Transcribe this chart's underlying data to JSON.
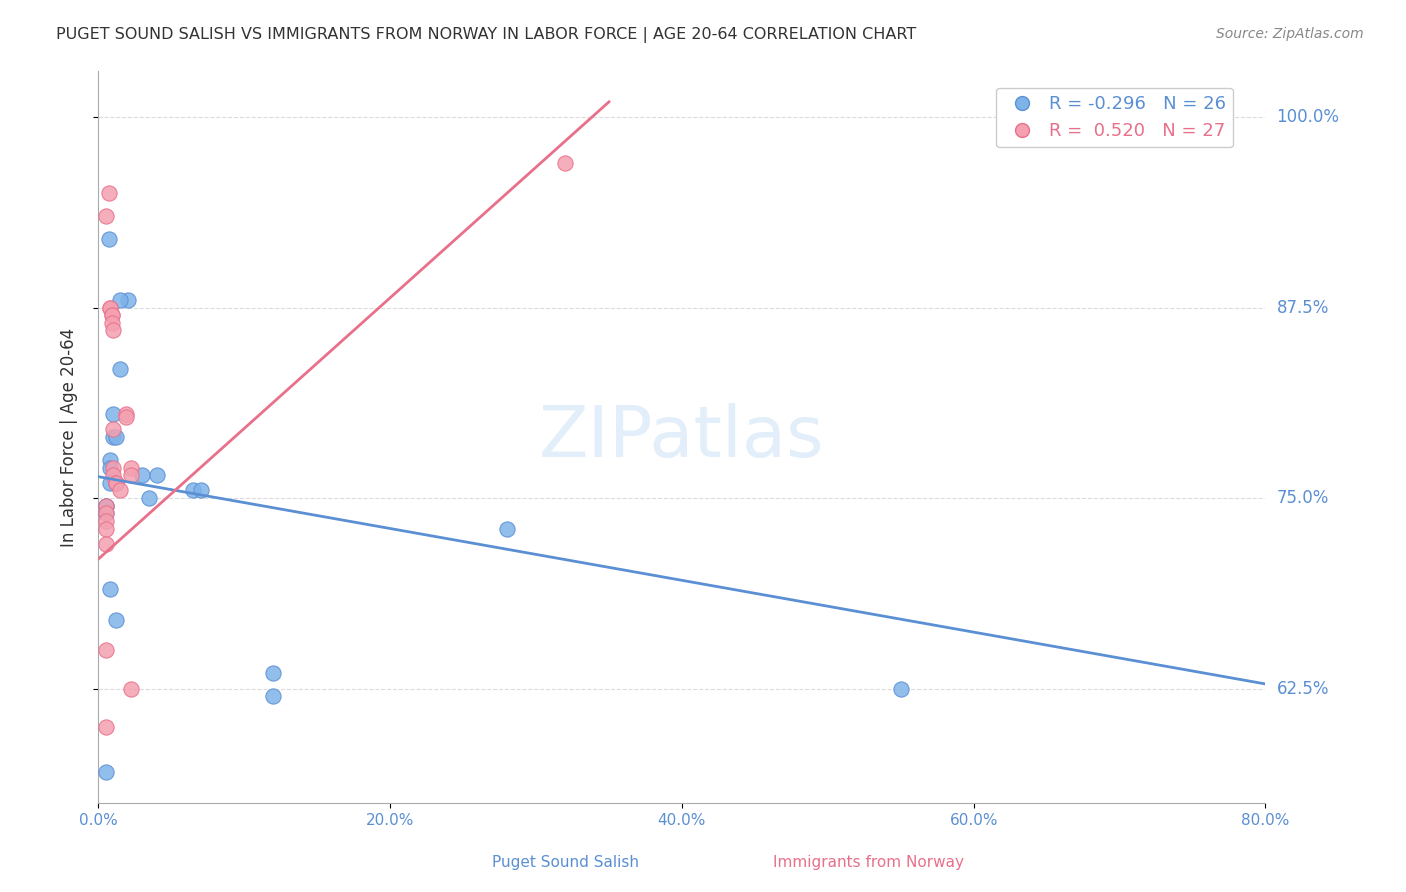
{
  "title": "PUGET SOUND SALISH VS IMMIGRANTS FROM NORWAY IN LABOR FORCE | AGE 20-64 CORRELATION CHART",
  "source": "Source: ZipAtlas.com",
  "xlabel_bottom": "",
  "ylabel": "In Labor Force | Age 20-64",
  "x_min": 0.0,
  "x_max": 0.8,
  "y_min": 0.55,
  "y_max": 1.03,
  "right_yticks": [
    0.625,
    0.75,
    0.875,
    1.0
  ],
  "right_yticklabels": [
    "62.5%",
    "75.0%",
    "87.5%",
    "100.0%"
  ],
  "x_ticks": [
    0.0,
    0.2,
    0.4,
    0.6,
    0.8
  ],
  "x_ticklabels": [
    "0.0%",
    "20.0%",
    "40.0%",
    "60.0%",
    "80.0%"
  ],
  "blue_label": "Puget Sound Salish",
  "pink_label": "Immigrants from Norway",
  "blue_r": "-0.296",
  "blue_n": "26",
  "pink_r": "0.520",
  "pink_n": "27",
  "blue_color": "#7eb3e8",
  "pink_color": "#f4a0b0",
  "blue_line_color": "#5b8fd4",
  "pink_line_color": "#e8708a",
  "watermark": "ZIPatlas",
  "blue_scatter_x": [
    0.007,
    0.02,
    0.015,
    0.015,
    0.01,
    0.01,
    0.012,
    0.008,
    0.008,
    0.008,
    0.012,
    0.005,
    0.005,
    0.005,
    0.065,
    0.07,
    0.03,
    0.04,
    0.035,
    0.008,
    0.012,
    0.12,
    0.12,
    0.55,
    0.28,
    0.005
  ],
  "blue_scatter_y": [
    0.92,
    0.88,
    0.88,
    0.835,
    0.805,
    0.79,
    0.79,
    0.775,
    0.77,
    0.76,
    0.76,
    0.745,
    0.745,
    0.74,
    0.755,
    0.755,
    0.765,
    0.765,
    0.75,
    0.69,
    0.67,
    0.635,
    0.62,
    0.625,
    0.73,
    0.57
  ],
  "pink_scatter_x": [
    0.007,
    0.005,
    0.008,
    0.008,
    0.009,
    0.009,
    0.009,
    0.01,
    0.01,
    0.01,
    0.01,
    0.012,
    0.012,
    0.015,
    0.005,
    0.005,
    0.005,
    0.005,
    0.005,
    0.005,
    0.019,
    0.019,
    0.32,
    0.022,
    0.022,
    0.022,
    0.005
  ],
  "pink_scatter_y": [
    0.95,
    0.935,
    0.875,
    0.875,
    0.87,
    0.87,
    0.865,
    0.86,
    0.795,
    0.77,
    0.765,
    0.76,
    0.76,
    0.755,
    0.745,
    0.74,
    0.735,
    0.73,
    0.72,
    0.65,
    0.805,
    0.803,
    0.97,
    0.77,
    0.765,
    0.625,
    0.6
  ],
  "blue_line_x": [
    0.0,
    0.8
  ],
  "blue_line_y": [
    0.764,
    0.628
  ],
  "pink_line_x": [
    0.0,
    0.35
  ],
  "pink_line_y": [
    0.71,
    1.01
  ]
}
